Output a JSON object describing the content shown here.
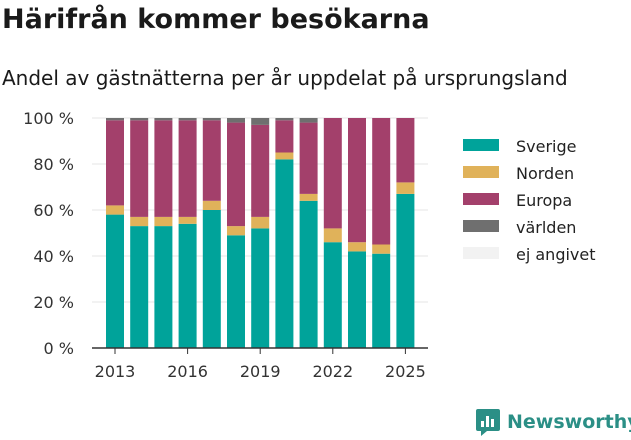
{
  "header": {
    "title": "Härifrån kommer besökarna",
    "subtitle": "Andel av gästnätterna per år uppdelat på ursprungsland"
  },
  "brand": {
    "name": "Newsworthy",
    "icon": "newsworthy-logo-icon",
    "color": "#2b8f86"
  },
  "chart_data": {
    "type": "bar",
    "stacked": true,
    "categories": [
      "2013",
      "2014",
      "2015",
      "2016",
      "2017",
      "2018",
      "2019",
      "2020",
      "2021",
      "2022",
      "2023",
      "2024",
      "2025"
    ],
    "x_tick_labels": [
      "2013",
      "2016",
      "2019",
      "2022",
      "2025"
    ],
    "y_ticks": [
      0,
      20,
      40,
      60,
      80,
      100
    ],
    "y_unit": "%",
    "ylim": [
      0,
      100
    ],
    "grid": "horizontal",
    "legend_position": "right",
    "series": [
      {
        "name": "Sverige",
        "color": "#00a39a",
        "values": [
          58,
          53,
          53,
          54,
          60,
          49,
          52,
          82,
          64,
          46,
          42,
          41,
          67
        ]
      },
      {
        "name": "Norden",
        "color": "#e0b25a",
        "values": [
          4,
          4,
          4,
          3,
          4,
          4,
          5,
          3,
          3,
          6,
          4,
          4,
          5
        ]
      },
      {
        "name": "Europa",
        "color": "#a3406b",
        "values": [
          37,
          42,
          42,
          42,
          35,
          45,
          40,
          14,
          31,
          48,
          54,
          55,
          28
        ]
      },
      {
        "name": "världen",
        "color": "#6f6f6f",
        "values": [
          1,
          1,
          1,
          1,
          1,
          2,
          3,
          1,
          2,
          0,
          0,
          0,
          0
        ]
      },
      {
        "name": "ej angivet",
        "color": "#f2f2f2",
        "values": [
          0,
          0,
          0,
          0,
          0,
          0,
          0,
          0,
          0,
          0,
          0,
          0,
          0
        ]
      }
    ]
  }
}
